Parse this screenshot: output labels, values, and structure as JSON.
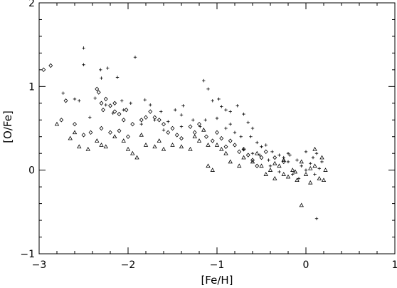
{
  "chart_data": {
    "type": "scatter",
    "title": "",
    "xlabel": "[Fe/H]",
    "ylabel": "[O/Fe]",
    "xlim": [
      -3,
      1
    ],
    "ylim": [
      -1,
      2
    ],
    "grid": false,
    "xticks": [
      -3,
      -2,
      -1,
      0,
      1
    ],
    "yticks": [
      -1,
      0,
      1,
      2
    ],
    "xtick_labels": [
      "−3",
      "−2",
      "−1",
      "0",
      "1"
    ],
    "ytick_labels": [
      "−1",
      "0",
      "1",
      "2"
    ],
    "series": [
      {
        "marker": "plus",
        "points": [
          [
            -2.5,
            1.46
          ],
          [
            -2.5,
            1.26
          ],
          [
            -2.31,
            1.2
          ],
          [
            -2.3,
            1.1
          ],
          [
            -1.92,
            1.35
          ],
          [
            -2.23,
            1.22
          ],
          [
            -2.12,
            1.11
          ],
          [
            -2.73,
            0.92
          ],
          [
            -2.6,
            0.85
          ],
          [
            -2.55,
            0.83
          ],
          [
            -2.43,
            0.63
          ],
          [
            -2.37,
            0.86
          ],
          [
            -2.07,
            0.83
          ],
          [
            -2.17,
            0.68
          ],
          [
            -1.97,
            0.8
          ],
          [
            -1.81,
            0.84
          ],
          [
            -1.63,
            0.7
          ],
          [
            -1.7,
            0.6
          ],
          [
            -1.47,
            0.72
          ],
          [
            -1.4,
            0.66
          ],
          [
            -1.38,
            0.77
          ],
          [
            -1.27,
            0.6
          ],
          [
            -1.13,
            0.6
          ],
          [
            -1.19,
            0.52
          ],
          [
            -1.15,
            1.07
          ],
          [
            -1.1,
            0.97
          ],
          [
            -1.05,
            0.83
          ],
          [
            -0.98,
            0.85
          ],
          [
            -0.95,
            0.76
          ],
          [
            -0.9,
            0.72
          ],
          [
            -0.85,
            0.7
          ],
          [
            -0.77,
            0.77
          ],
          [
            -0.7,
            0.67
          ],
          [
            -0.65,
            0.57
          ],
          [
            -0.9,
            0.5
          ],
          [
            -0.8,
            0.45
          ],
          [
            -0.73,
            0.4
          ],
          [
            -0.62,
            0.4
          ],
          [
            -0.55,
            0.33
          ],
          [
            -0.5,
            0.28
          ],
          [
            -0.45,
            0.3
          ],
          [
            -0.38,
            0.22
          ],
          [
            -0.3,
            0.18
          ],
          [
            -0.25,
            0.15
          ],
          [
            -0.18,
            0.18
          ],
          [
            -0.1,
            0.12
          ],
          [
            -0.05,
            0.05
          ],
          [
            0.0,
            0.0
          ],
          [
            0.05,
            0.08
          ],
          [
            0.1,
            -0.05
          ],
          [
            0.15,
            0.02
          ],
          [
            -0.4,
            0.05
          ],
          [
            -0.3,
            -0.02
          ],
          [
            -0.2,
            0.1
          ],
          [
            -0.15,
            -0.05
          ],
          [
            -0.08,
            -0.1
          ],
          [
            0.08,
            0.15
          ],
          [
            0.12,
            0.2
          ],
          [
            -0.6,
            0.2
          ],
          [
            -0.7,
            0.25
          ],
          [
            -1.4,
            0.52
          ],
          [
            -1.6,
            0.48
          ],
          [
            -1.85,
            0.55
          ],
          [
            -2.25,
            0.78
          ],
          [
            0.12,
            -0.58
          ],
          [
            0.0,
            0.22
          ],
          [
            -0.52,
            0.18
          ],
          [
            -0.42,
            0.12
          ],
          [
            -0.2,
            0.2
          ],
          [
            0.18,
            0.1
          ],
          [
            -1.0,
            0.62
          ],
          [
            -0.6,
            0.5
          ],
          [
            -0.85,
            0.55
          ],
          [
            -1.55,
            0.58
          ],
          [
            -1.75,
            0.78
          ],
          [
            -2.05,
            0.72
          ]
        ]
      },
      {
        "marker": "diamond",
        "points": [
          [
            -2.87,
            1.25
          ],
          [
            -2.95,
            1.2
          ],
          [
            -2.7,
            0.83
          ],
          [
            -2.75,
            0.6
          ],
          [
            -2.35,
            0.97
          ],
          [
            -2.33,
            0.93
          ],
          [
            -2.3,
            0.8
          ],
          [
            -2.25,
            0.85
          ],
          [
            -2.2,
            0.77
          ],
          [
            -2.15,
            0.8
          ],
          [
            -2.1,
            0.67
          ],
          [
            -2.05,
            0.6
          ],
          [
            -2.3,
            0.5
          ],
          [
            -2.2,
            0.45
          ],
          [
            -2.1,
            0.47
          ],
          [
            -2.0,
            0.4
          ],
          [
            -1.85,
            0.6
          ],
          [
            -1.75,
            0.7
          ],
          [
            -1.7,
            0.63
          ],
          [
            -1.65,
            0.6
          ],
          [
            -1.6,
            0.55
          ],
          [
            -1.5,
            0.5
          ],
          [
            -1.45,
            0.42
          ],
          [
            -1.4,
            0.38
          ],
          [
            -1.25,
            0.45
          ],
          [
            -1.2,
            0.55
          ],
          [
            -1.0,
            0.45
          ],
          [
            -0.95,
            0.38
          ],
          [
            -0.85,
            0.35
          ],
          [
            -0.8,
            0.3
          ],
          [
            -0.75,
            0.22
          ],
          [
            -0.7,
            0.25
          ],
          [
            -0.65,
            0.18
          ],
          [
            -0.6,
            0.12
          ],
          [
            -0.55,
            0.05
          ],
          [
            -0.5,
            0.15
          ],
          [
            -2.6,
            0.55
          ],
          [
            -2.5,
            0.42
          ],
          [
            -2.42,
            0.45
          ],
          [
            -1.8,
            0.63
          ],
          [
            -1.3,
            0.52
          ],
          [
            -0.9,
            0.28
          ],
          [
            -0.45,
            0.22
          ],
          [
            -0.35,
            0.15
          ],
          [
            -0.25,
            0.1
          ],
          [
            -1.55,
            0.45
          ],
          [
            -1.95,
            0.55
          ],
          [
            -2.15,
            0.7
          ],
          [
            -2.02,
            0.72
          ],
          [
            -2.28,
            0.72
          ],
          [
            -1.12,
            0.4
          ],
          [
            -1.05,
            0.35
          ]
        ]
      },
      {
        "marker": "triangle",
        "points": [
          [
            -2.8,
            0.55
          ],
          [
            -2.65,
            0.38
          ],
          [
            -2.55,
            0.28
          ],
          [
            -2.45,
            0.25
          ],
          [
            -2.35,
            0.35
          ],
          [
            -2.3,
            0.3
          ],
          [
            -2.15,
            0.4
          ],
          [
            -2.05,
            0.35
          ],
          [
            -2.0,
            0.25
          ],
          [
            -1.95,
            0.2
          ],
          [
            -1.9,
            0.15
          ],
          [
            -1.8,
            0.3
          ],
          [
            -1.7,
            0.28
          ],
          [
            -1.6,
            0.25
          ],
          [
            -1.5,
            0.3
          ],
          [
            -1.4,
            0.28
          ],
          [
            -1.3,
            0.25
          ],
          [
            -1.2,
            0.35
          ],
          [
            -1.1,
            0.3
          ],
          [
            -1.0,
            0.3
          ],
          [
            -0.95,
            0.25
          ],
          [
            -0.9,
            0.2
          ],
          [
            -0.85,
            0.1
          ],
          [
            -0.75,
            0.05
          ],
          [
            -0.7,
            0.15
          ],
          [
            -0.6,
            0.1
          ],
          [
            -0.5,
            0.05
          ],
          [
            -0.45,
            -0.05
          ],
          [
            -0.4,
            0.0
          ],
          [
            -0.35,
            -0.1
          ],
          [
            -0.3,
            0.05
          ],
          [
            -0.25,
            -0.05
          ],
          [
            -0.2,
            -0.08
          ],
          [
            -0.15,
            0.0
          ],
          [
            -0.1,
            -0.12
          ],
          [
            -0.05,
            0.1
          ],
          [
            0.0,
            -0.05
          ],
          [
            0.05,
            -0.15
          ],
          [
            0.1,
            0.05
          ],
          [
            0.15,
            -0.1
          ],
          [
            0.2,
            -0.12
          ],
          [
            -1.1,
            0.05
          ],
          [
            -1.05,
            0.0
          ],
          [
            0.1,
            0.25
          ],
          [
            0.18,
            0.15
          ],
          [
            -0.05,
            -0.42
          ],
          [
            -2.25,
            0.28
          ],
          [
            -1.85,
            0.42
          ],
          [
            -1.65,
            0.35
          ],
          [
            -1.25,
            0.4
          ],
          [
            -1.15,
            0.48
          ],
          [
            -2.6,
            0.45
          ],
          [
            -0.55,
            0.2
          ],
          [
            -0.35,
            0.08
          ],
          [
            0.22,
            0.0
          ],
          [
            -0.25,
            0.12
          ],
          [
            0.05,
            0.02
          ],
          [
            -0.12,
            -0.02
          ]
        ]
      }
    ]
  }
}
